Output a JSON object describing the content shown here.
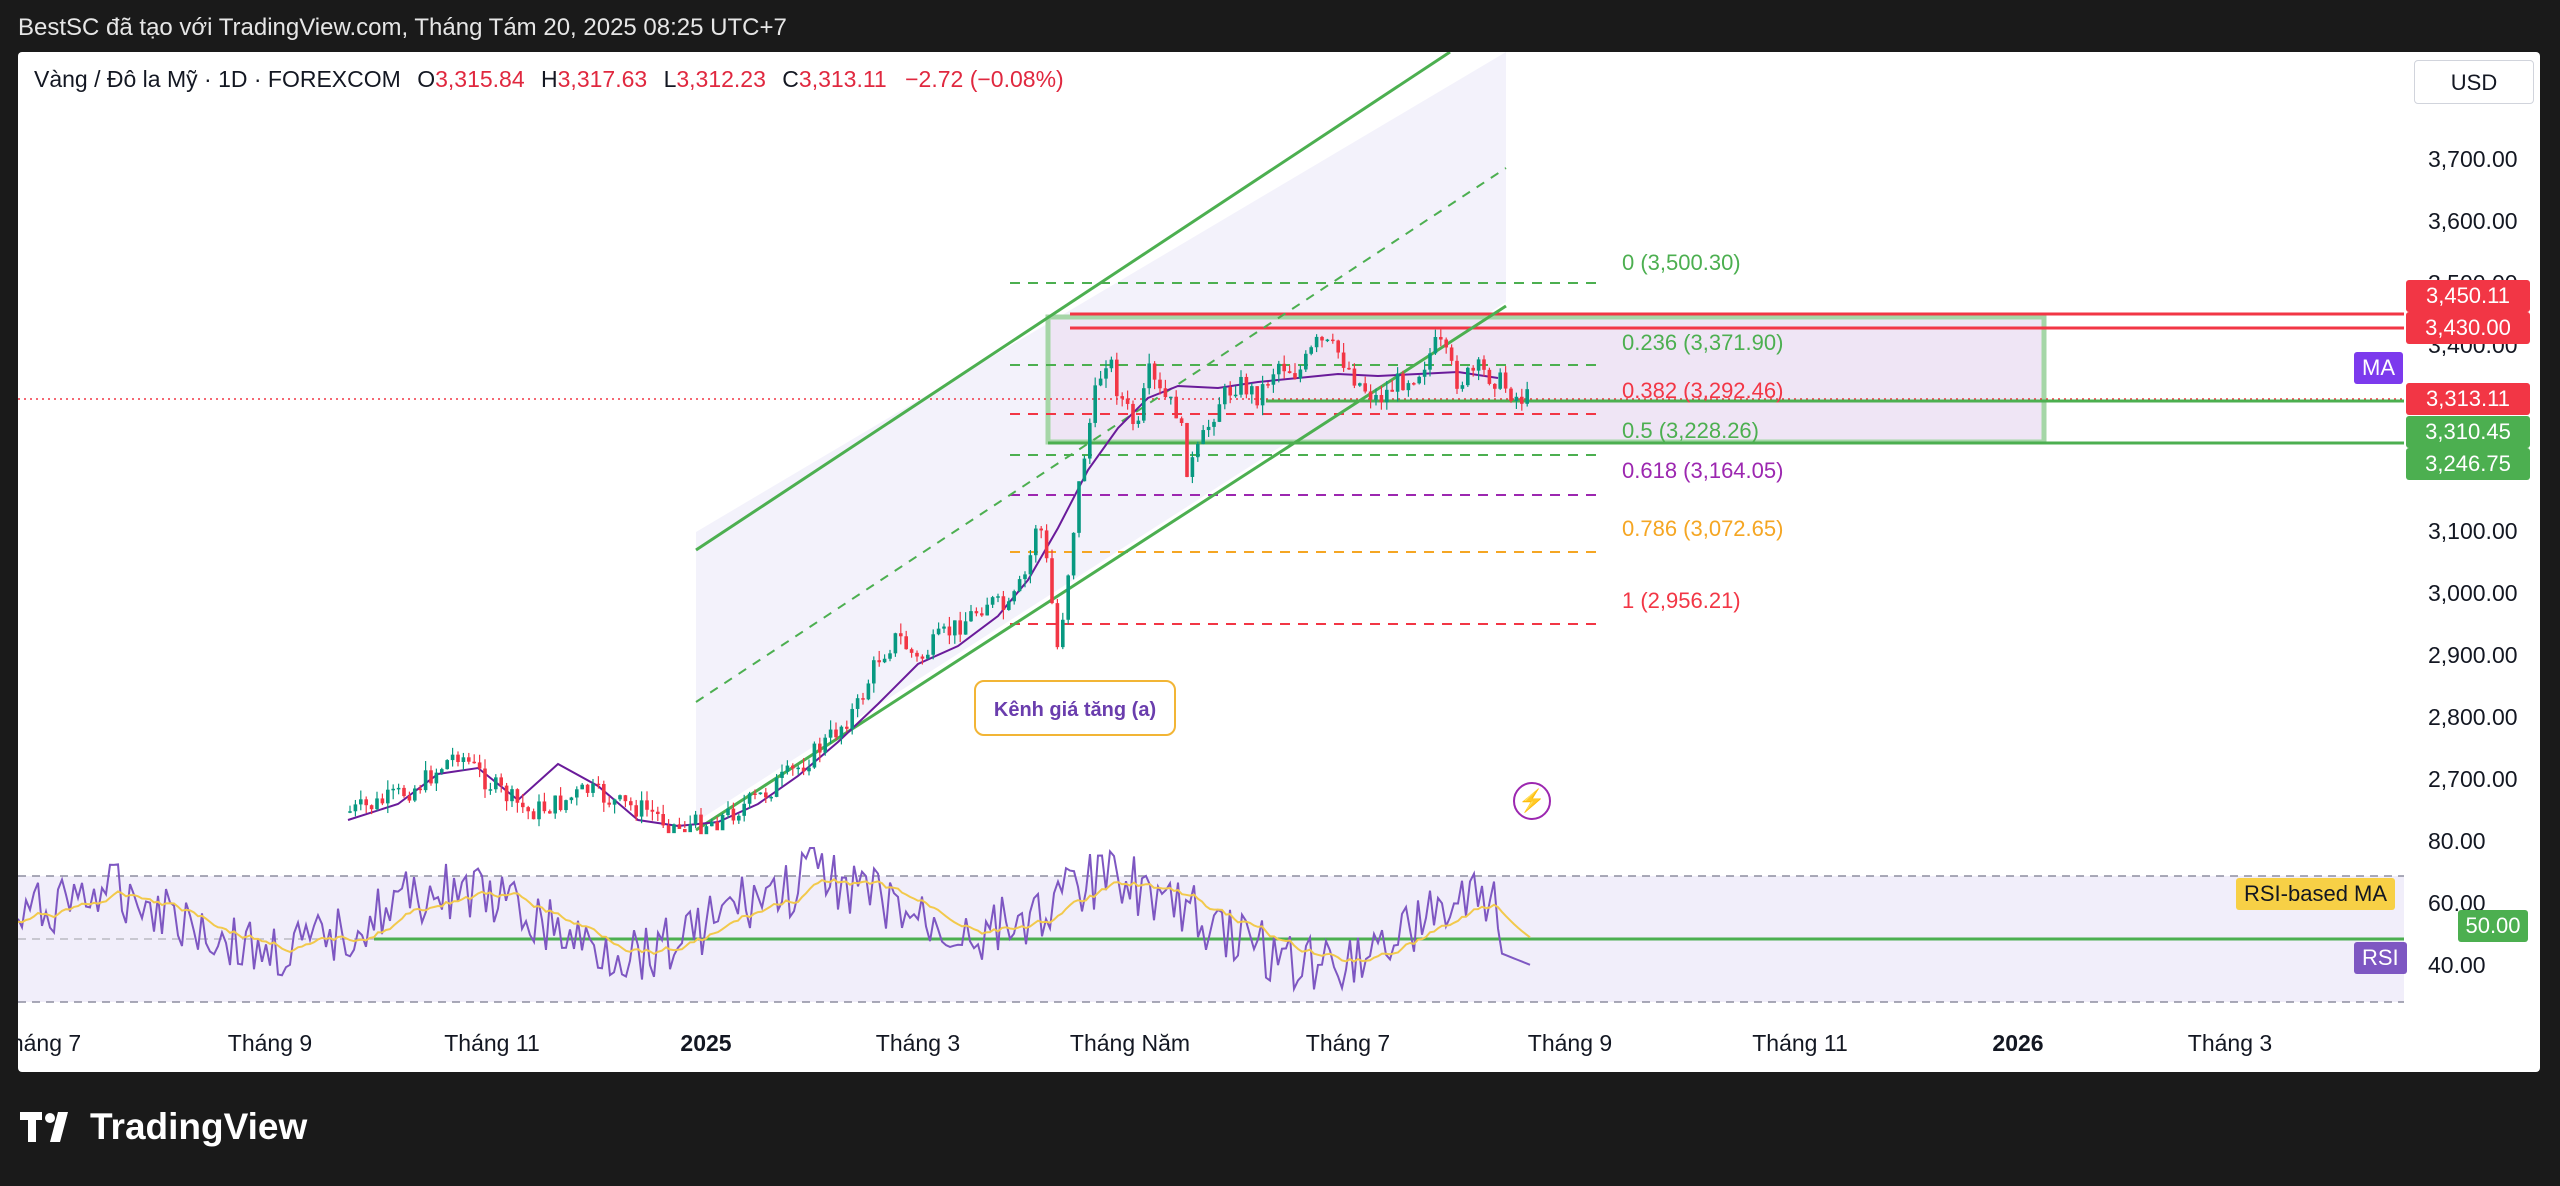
{
  "header": {
    "title": "BestSC đã tạo với TradingView.com, Tháng Tám 20, 2025 08:25 UTC+7"
  },
  "legend": {
    "symbol": "Vàng / Đô la Mỹ · 1D · FOREXCOM",
    "o_label": "O",
    "o_value": "3,315.84",
    "h_label": "H",
    "h_value": "3,317.63",
    "l_label": "L",
    "l_value": "3,312.23",
    "c_label": "C",
    "c_value": "3,313.11",
    "change": "−2.72 (−0.08%)"
  },
  "currency": "USD",
  "price_axis": [
    "3,700.00",
    "3,600.00",
    "3,500.00",
    "3,400.00",
    "3,100.00",
    "3,000.00",
    "2,900.00",
    "2,800.00",
    "2,700.00"
  ],
  "rsi_axis": [
    "80.00",
    "60.00",
    "40.00"
  ],
  "time_axis": [
    {
      "label": "háng 7",
      "bold": false
    },
    {
      "label": "Tháng 9",
      "bold": false
    },
    {
      "label": "Tháng 11",
      "bold": false
    },
    {
      "label": "2025",
      "bold": true
    },
    {
      "label": "Tháng 3",
      "bold": false
    },
    {
      "label": "Tháng Năm",
      "bold": false
    },
    {
      "label": "Tháng 7",
      "bold": false
    },
    {
      "label": "Tháng 9",
      "bold": false
    },
    {
      "label": "Tháng 11",
      "bold": false
    },
    {
      "label": "2026",
      "bold": true
    },
    {
      "label": "Tháng 3",
      "bold": false
    }
  ],
  "fib_levels": [
    {
      "label": "0 (3,500.30)",
      "color": "#4caf50"
    },
    {
      "label": "0.236 (3,371.90)",
      "color": "#4caf50"
    },
    {
      "label": "0.382 (3,292.46)",
      "color": "#f23645"
    },
    {
      "label": "0.5 (3,228.26)",
      "color": "#4caf50"
    },
    {
      "label": "0.618 (3,164.05)",
      "color": "#9c27b0"
    },
    {
      "label": "0.786 (3,072.65)",
      "color": "#f5a623"
    },
    {
      "label": "1 (2,956.21)",
      "color": "#f23645"
    }
  ],
  "price_tags": [
    {
      "label": "3,450.11",
      "color": "#f23645"
    },
    {
      "label": "3,430.00",
      "color": "#f23645"
    },
    {
      "label": "3,313.11",
      "color": "#f23645"
    },
    {
      "label": "3,310.45",
      "color": "#4caf50"
    },
    {
      "label": "3,246.75",
      "color": "#4caf50"
    },
    {
      "label": "50.00",
      "color": "#4caf50"
    }
  ],
  "indicator_tags": {
    "ma": "MA",
    "rsi_ma": "RSI-based MA",
    "rsi": "RSI"
  },
  "annotation": {
    "channel": "Kênh giá tăng (a)"
  },
  "icons": {
    "alert": "lightning-bolt-icon"
  },
  "footer": {
    "brand": "TradingView"
  }
}
